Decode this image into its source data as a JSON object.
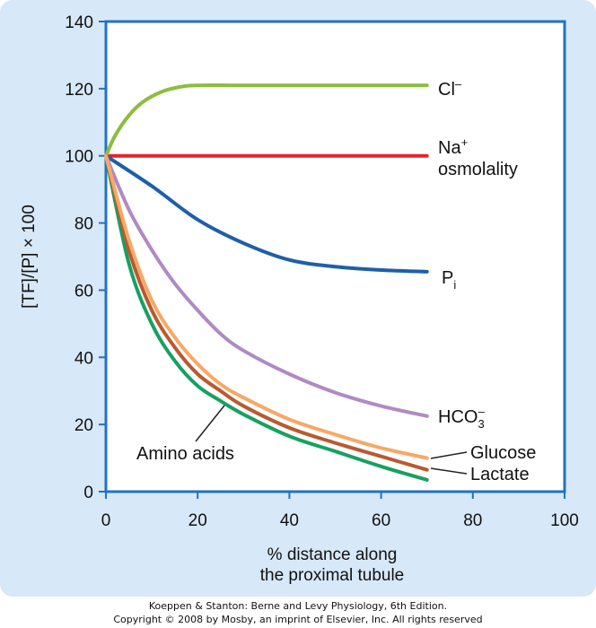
{
  "chart_data": {
    "type": "line",
    "xlabel": [
      "% distance along",
      "the proximal tubule"
    ],
    "ylabel": "[TF]/[P] × 100",
    "xlim": [
      0,
      100
    ],
    "ylim": [
      0,
      140
    ],
    "x_ticks": [
      0,
      20,
      40,
      60,
      80,
      100
    ],
    "y_ticks": [
      0,
      20,
      40,
      60,
      80,
      100,
      120,
      140
    ],
    "grid": false,
    "series": [
      {
        "name": "Cl⁻",
        "color": "#8cbd3f",
        "x": [
          0,
          2,
          5,
          8,
          12,
          16,
          20,
          30,
          50,
          70
        ],
        "y": [
          100,
          106,
          112,
          116,
          119,
          120.5,
          121,
          121,
          121,
          121
        ]
      },
      {
        "name": "Na⁺ osmolality",
        "color": "#e8202a",
        "x": [
          0,
          70
        ],
        "y": [
          100,
          100
        ]
      },
      {
        "name": "Pᵢ",
        "color": "#1e5fa8",
        "x": [
          0,
          10,
          20,
          30,
          40,
          50,
          60,
          70
        ],
        "y": [
          100,
          91,
          81,
          74,
          69,
          67,
          66,
          65.5
        ]
      },
      {
        "name": "HCO₃⁻",
        "color": "#b08ac4",
        "x": [
          0,
          5,
          10,
          15,
          20,
          25,
          30,
          40,
          50,
          60,
          70
        ],
        "y": [
          100,
          84,
          72,
          62,
          54,
          47,
          42,
          35,
          29.5,
          25.5,
          22.5
        ]
      },
      {
        "name": "Glucose",
        "color": "#f7a866",
        "x": [
          0,
          5,
          10,
          15,
          20,
          25,
          30,
          40,
          50,
          60,
          70
        ],
        "y": [
          100,
          75,
          57,
          46,
          38,
          32,
          28,
          21.5,
          17,
          13,
          10
        ]
      },
      {
        "name": "Lactate",
        "color": "#b85a30",
        "x": [
          0,
          5,
          10,
          15,
          20,
          25,
          30,
          40,
          50,
          60,
          70
        ],
        "y": [
          100,
          72,
          54,
          43,
          35,
          30,
          25.5,
          19,
          14.5,
          10.5,
          6.5
        ]
      },
      {
        "name": "Amino acids",
        "color": "#17a062",
        "x": [
          0,
          5,
          10,
          15,
          20,
          25,
          30,
          40,
          50,
          60,
          70
        ],
        "y": [
          100,
          68,
          50,
          39,
          31.5,
          27,
          23,
          16.5,
          12,
          7.5,
          3.5
        ]
      }
    ],
    "annotations": [
      {
        "text": "Cl",
        "sup": "–"
      },
      {
        "text": "Na",
        "sup": "+"
      },
      {
        "text": "osmolality"
      },
      {
        "text": "P",
        "sub": "i"
      },
      {
        "text": "HCO",
        "sub": "3",
        "sup": "–"
      },
      {
        "text": "Glucose"
      },
      {
        "text": "Lactate"
      },
      {
        "text": "Amino acids"
      }
    ]
  },
  "footer": {
    "line1": "Koeppen & Stanton: Berne and Levy Physiology, 6th Edition.",
    "line2": "Copyright © 2008 by Mosby, an imprint of Elsevier, Inc. All rights reserved"
  }
}
